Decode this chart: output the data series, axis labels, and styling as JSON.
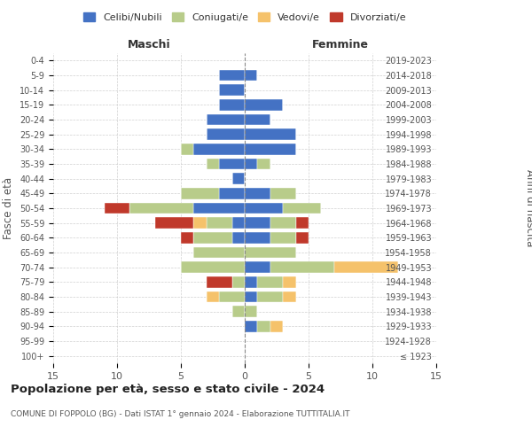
{
  "age_groups": [
    "100+",
    "95-99",
    "90-94",
    "85-89",
    "80-84",
    "75-79",
    "70-74",
    "65-69",
    "60-64",
    "55-59",
    "50-54",
    "45-49",
    "40-44",
    "35-39",
    "30-34",
    "25-29",
    "20-24",
    "15-19",
    "10-14",
    "5-9",
    "0-4"
  ],
  "birth_years": [
    "≤ 1923",
    "1924-1928",
    "1929-1933",
    "1934-1938",
    "1939-1943",
    "1944-1948",
    "1949-1953",
    "1954-1958",
    "1959-1963",
    "1964-1968",
    "1969-1973",
    "1974-1978",
    "1979-1983",
    "1984-1988",
    "1989-1993",
    "1994-1998",
    "1999-2003",
    "2004-2008",
    "2009-2013",
    "2014-2018",
    "2019-2023"
  ],
  "colors": {
    "celibi": "#4472c4",
    "coniugati": "#b8cc8a",
    "vedovi": "#f5c26b",
    "divorziati": "#c0392b"
  },
  "maschi": {
    "celibi": [
      0,
      0,
      0,
      0,
      0,
      0,
      0,
      0,
      1,
      1,
      4,
      2,
      1,
      2,
      4,
      3,
      3,
      2,
      2,
      2,
      0
    ],
    "coniugati": [
      0,
      0,
      0,
      1,
      2,
      1,
      5,
      4,
      3,
      2,
      5,
      3,
      0,
      1,
      1,
      0,
      0,
      0,
      0,
      0,
      0
    ],
    "vedovi": [
      0,
      0,
      0,
      0,
      1,
      0,
      0,
      0,
      0,
      1,
      0,
      0,
      0,
      0,
      0,
      0,
      0,
      0,
      0,
      0,
      0
    ],
    "divorziati": [
      0,
      0,
      0,
      0,
      0,
      2,
      0,
      0,
      1,
      3,
      2,
      0,
      0,
      0,
      0,
      0,
      0,
      0,
      0,
      0,
      0
    ]
  },
  "femmine": {
    "celibi": [
      0,
      0,
      1,
      0,
      1,
      1,
      2,
      0,
      2,
      2,
      3,
      2,
      0,
      1,
      4,
      4,
      2,
      3,
      0,
      1,
      0
    ],
    "coniugati": [
      0,
      0,
      1,
      1,
      2,
      2,
      5,
      4,
      2,
      2,
      3,
      2,
      0,
      1,
      0,
      0,
      0,
      0,
      0,
      0,
      0
    ],
    "vedovi": [
      0,
      0,
      1,
      0,
      1,
      1,
      5,
      0,
      0,
      0,
      0,
      0,
      0,
      0,
      0,
      0,
      0,
      0,
      0,
      0,
      0
    ],
    "divorziati": [
      0,
      0,
      0,
      0,
      0,
      0,
      0,
      0,
      1,
      1,
      0,
      0,
      0,
      0,
      0,
      0,
      0,
      0,
      0,
      0,
      0
    ]
  },
  "xlim": 15,
  "title": "Popolazione per età, sesso e stato civile - 2024",
  "subtitle": "COMUNE DI FOPPOLO (BG) - Dati ISTAT 1° gennaio 2024 - Elaborazione TUTTITALIA.IT",
  "xlabel_left": "Maschi",
  "xlabel_right": "Femmine",
  "ylabel": "Fasce di età",
  "ylabel_right": "Anni di nascita",
  "legend_labels": [
    "Celibi/Nubili",
    "Coniugati/e",
    "Vedovi/e",
    "Divorziati/e"
  ],
  "background_color": "#ffffff",
  "grid_color": "#cccccc"
}
